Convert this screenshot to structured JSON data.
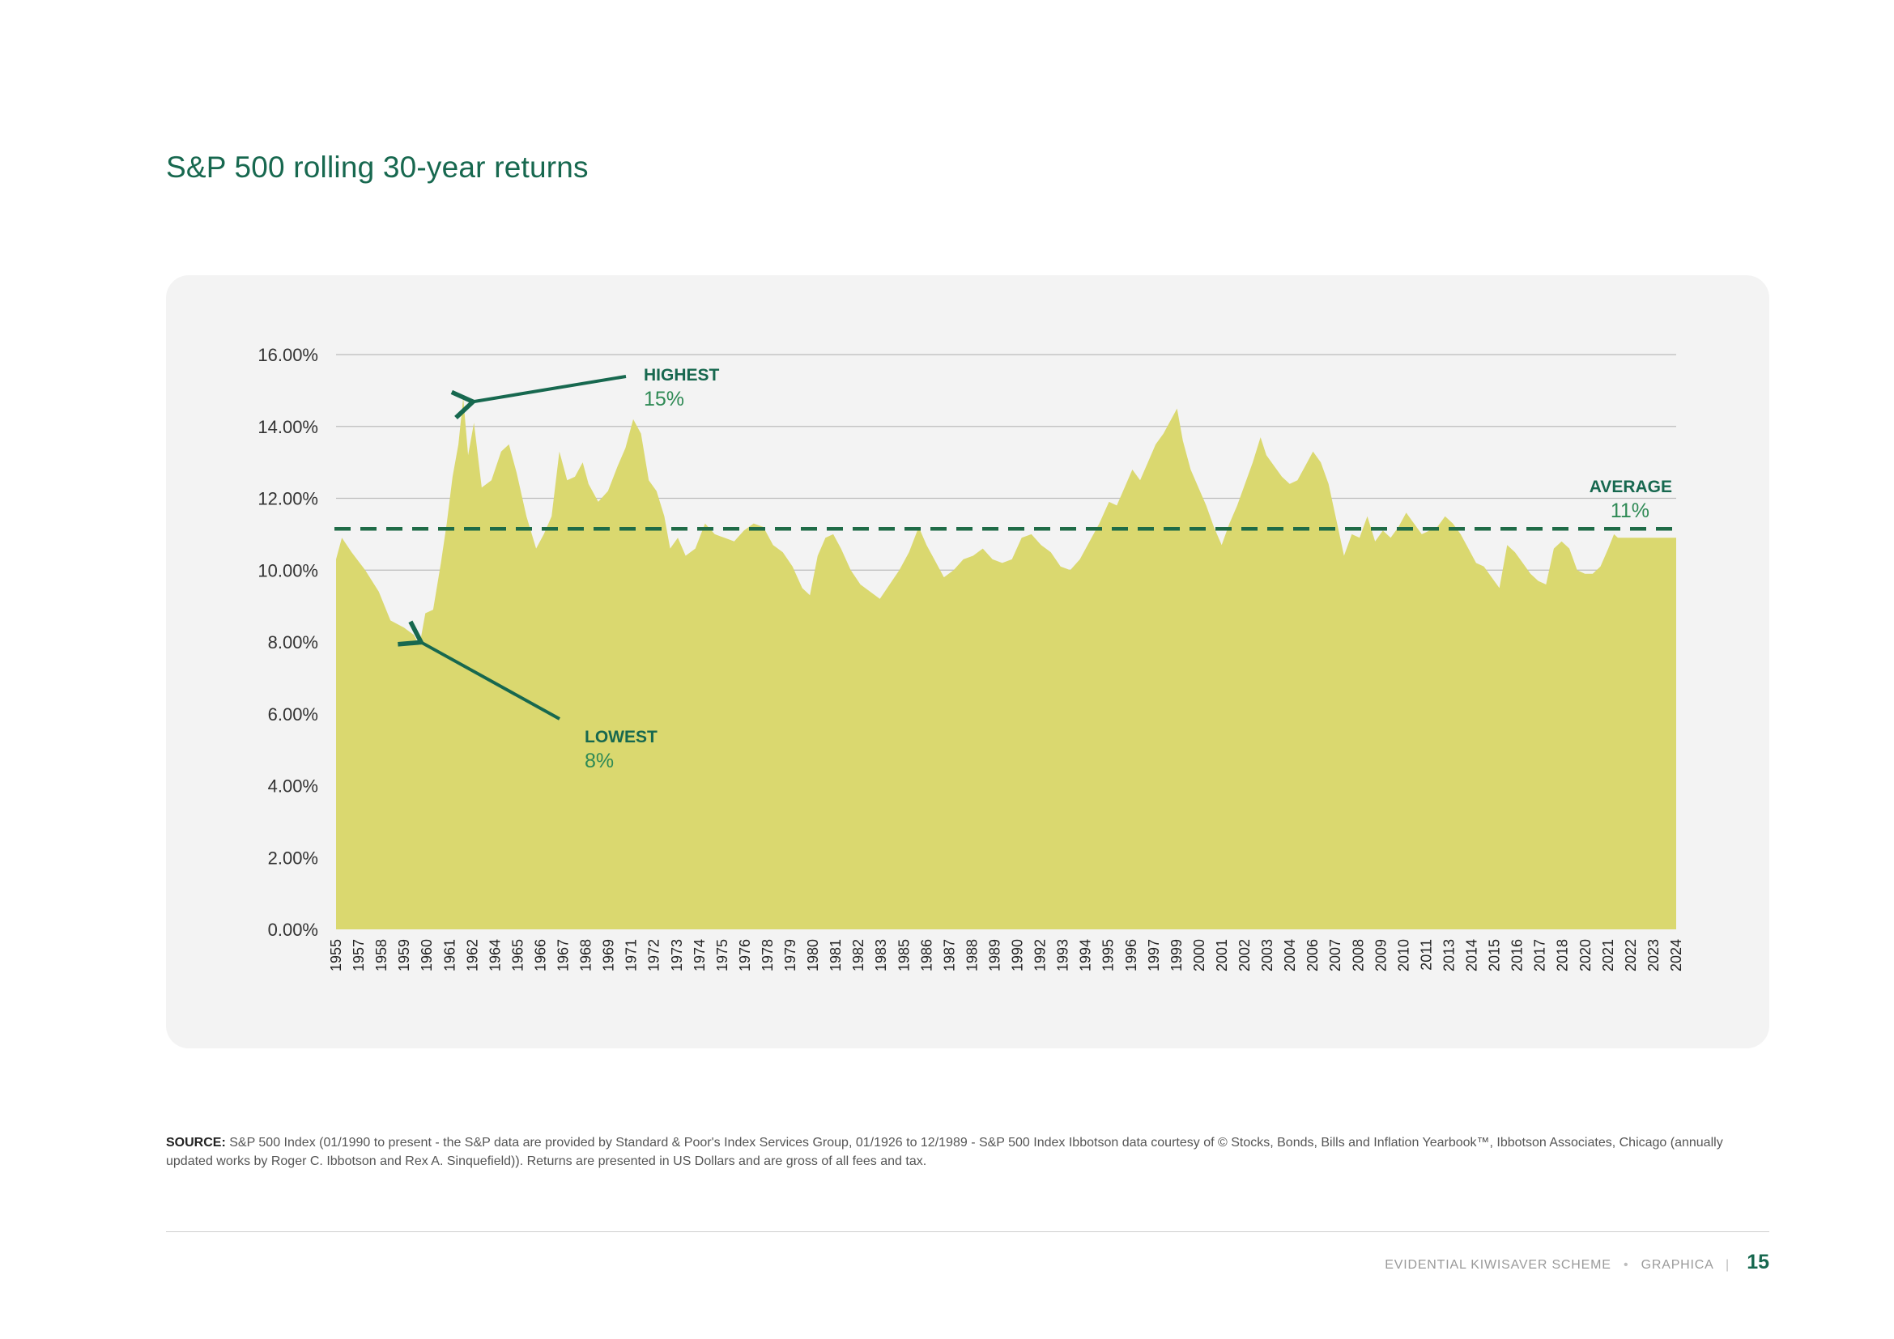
{
  "page": {
    "title": "S&P 500 rolling 30-year returns",
    "source_label": "SOURCE:",
    "source_text": "S&P 500 Index (01/1990 to present - the S&P data are provided by Standard & Poor's Index Services Group, 01/1926 to 12/1989 - S&P 500 Index Ibbotson data courtesy of © Stocks, Bonds, Bills and Inflation Yearbook™, Ibbotson Associates, Chicago (annually updated works by Roger C. Ibbotson and Rex A. Sinquefield)). Returns are presented in US Dollars and are gross of all fees and tax.",
    "footer_left": "EVIDENTIAL KIWISAVER SCHEME",
    "footer_dot": "•",
    "footer_brand": "GRAPHICA",
    "footer_sep": "|",
    "page_number": "15"
  },
  "chart_data": {
    "type": "area",
    "title": "S&P 500 rolling 30-year returns",
    "xlabel": "",
    "ylabel": "",
    "ylim": [
      0,
      16
    ],
    "y_ticks": [
      "0.00%",
      "2.00%",
      "4.00%",
      "6.00%",
      "8.00%",
      "10.00%",
      "12.00%",
      "14.00%",
      "16.00%"
    ],
    "x_ticks": [
      "1955",
      "1957",
      "1958",
      "1959",
      "1960",
      "1961",
      "1962",
      "1964",
      "1965",
      "1966",
      "1967",
      "1968",
      "1969",
      "1971",
      "1972",
      "1973",
      "1974",
      "1975",
      "1976",
      "1978",
      "1979",
      "1980",
      "1981",
      "1982",
      "1983",
      "1985",
      "1986",
      "1987",
      "1988",
      "1989",
      "1990",
      "1992",
      "1993",
      "1994",
      "1995",
      "1996",
      "1997",
      "1999",
      "2000",
      "2001",
      "2002",
      "2003",
      "2004",
      "2006",
      "2007",
      "2008",
      "2009",
      "2010",
      "2011",
      "2013",
      "2014",
      "2015",
      "2016",
      "2017",
      "2018",
      "2020",
      "2021",
      "2022",
      "2023",
      "2024"
    ],
    "grid": true,
    "colors": {
      "area": "#dad86f",
      "average": "#1f6b47",
      "arrow": "#17684f",
      "grid": "#bcbcbc"
    },
    "series": [
      {
        "values": [
          {
            "x": 1955.0,
            "y": 10.3
          },
          {
            "x": 1955.3,
            "y": 10.9
          },
          {
            "x": 1955.8,
            "y": 10.5
          },
          {
            "x": 1956.5,
            "y": 10.0
          },
          {
            "x": 1957.2,
            "y": 9.4
          },
          {
            "x": 1957.8,
            "y": 8.6
          },
          {
            "x": 1958.5,
            "y": 8.4
          },
          {
            "x": 1959.0,
            "y": 8.2
          },
          {
            "x": 1959.3,
            "y": 7.9
          },
          {
            "x": 1959.6,
            "y": 8.8
          },
          {
            "x": 1960.0,
            "y": 8.9
          },
          {
            "x": 1960.4,
            "y": 10.2
          },
          {
            "x": 1960.7,
            "y": 11.3
          },
          {
            "x": 1961.0,
            "y": 12.6
          },
          {
            "x": 1961.3,
            "y": 13.5
          },
          {
            "x": 1961.55,
            "y": 14.8
          },
          {
            "x": 1961.8,
            "y": 13.2
          },
          {
            "x": 1962.1,
            "y": 14.1
          },
          {
            "x": 1962.5,
            "y": 12.3
          },
          {
            "x": 1963.0,
            "y": 12.5
          },
          {
            "x": 1963.5,
            "y": 13.3
          },
          {
            "x": 1963.9,
            "y": 13.5
          },
          {
            "x": 1964.3,
            "y": 12.7
          },
          {
            "x": 1964.8,
            "y": 11.5
          },
          {
            "x": 1965.3,
            "y": 10.6
          },
          {
            "x": 1965.7,
            "y": 11.0
          },
          {
            "x": 1966.1,
            "y": 11.5
          },
          {
            "x": 1966.5,
            "y": 13.3
          },
          {
            "x": 1966.9,
            "y": 12.5
          },
          {
            "x": 1967.3,
            "y": 12.6
          },
          {
            "x": 1967.7,
            "y": 13.0
          },
          {
            "x": 1968.0,
            "y": 12.4
          },
          {
            "x": 1968.5,
            "y": 11.9
          },
          {
            "x": 1969.0,
            "y": 12.2
          },
          {
            "x": 1969.5,
            "y": 12.9
          },
          {
            "x": 1969.9,
            "y": 13.4
          },
          {
            "x": 1970.3,
            "y": 14.2
          },
          {
            "x": 1970.7,
            "y": 13.8
          },
          {
            "x": 1971.1,
            "y": 12.5
          },
          {
            "x": 1971.5,
            "y": 12.2
          },
          {
            "x": 1971.9,
            "y": 11.5
          },
          {
            "x": 1972.2,
            "y": 10.6
          },
          {
            "x": 1972.6,
            "y": 10.9
          },
          {
            "x": 1973.0,
            "y": 10.4
          },
          {
            "x": 1973.5,
            "y": 10.6
          },
          {
            "x": 1974.0,
            "y": 11.3
          },
          {
            "x": 1974.5,
            "y": 11.0
          },
          {
            "x": 1975.0,
            "y": 10.9
          },
          {
            "x": 1975.5,
            "y": 10.8
          },
          {
            "x": 1976.0,
            "y": 11.1
          },
          {
            "x": 1976.5,
            "y": 11.3
          },
          {
            "x": 1977.0,
            "y": 11.2
          },
          {
            "x": 1977.5,
            "y": 10.7
          },
          {
            "x": 1978.0,
            "y": 10.5
          },
          {
            "x": 1978.5,
            "y": 10.1
          },
          {
            "x": 1979.0,
            "y": 9.5
          },
          {
            "x": 1979.4,
            "y": 9.3
          },
          {
            "x": 1979.8,
            "y": 10.4
          },
          {
            "x": 1980.2,
            "y": 10.9
          },
          {
            "x": 1980.6,
            "y": 11.0
          },
          {
            "x": 1981.0,
            "y": 10.6
          },
          {
            "x": 1981.5,
            "y": 10.0
          },
          {
            "x": 1982.0,
            "y": 9.6
          },
          {
            "x": 1982.5,
            "y": 9.4
          },
          {
            "x": 1983.0,
            "y": 9.2
          },
          {
            "x": 1983.5,
            "y": 9.6
          },
          {
            "x": 1984.0,
            "y": 10.0
          },
          {
            "x": 1984.5,
            "y": 10.5
          },
          {
            "x": 1985.0,
            "y": 11.2
          },
          {
            "x": 1985.4,
            "y": 10.7
          },
          {
            "x": 1985.8,
            "y": 10.3
          },
          {
            "x": 1986.3,
            "y": 9.8
          },
          {
            "x": 1986.8,
            "y": 10.0
          },
          {
            "x": 1987.3,
            "y": 10.3
          },
          {
            "x": 1987.8,
            "y": 10.4
          },
          {
            "x": 1988.3,
            "y": 10.6
          },
          {
            "x": 1988.8,
            "y": 10.3
          },
          {
            "x": 1989.3,
            "y": 10.2
          },
          {
            "x": 1989.8,
            "y": 10.3
          },
          {
            "x": 1990.3,
            "y": 10.9
          },
          {
            "x": 1990.8,
            "y": 11.0
          },
          {
            "x": 1991.3,
            "y": 10.7
          },
          {
            "x": 1991.8,
            "y": 10.5
          },
          {
            "x": 1992.3,
            "y": 10.1
          },
          {
            "x": 1992.8,
            "y": 10.0
          },
          {
            "x": 1993.3,
            "y": 10.3
          },
          {
            "x": 1993.8,
            "y": 10.8
          },
          {
            "x": 1994.3,
            "y": 11.3
          },
          {
            "x": 1994.8,
            "y": 11.9
          },
          {
            "x": 1995.2,
            "y": 11.8
          },
          {
            "x": 1995.6,
            "y": 12.3
          },
          {
            "x": 1996.0,
            "y": 12.8
          },
          {
            "x": 1996.4,
            "y": 12.5
          },
          {
            "x": 1996.8,
            "y": 13.0
          },
          {
            "x": 1997.2,
            "y": 13.5
          },
          {
            "x": 1997.6,
            "y": 13.8
          },
          {
            "x": 1998.0,
            "y": 14.2
          },
          {
            "x": 1998.3,
            "y": 14.5
          },
          {
            "x": 1998.6,
            "y": 13.6
          },
          {
            "x": 1999.0,
            "y": 12.8
          },
          {
            "x": 1999.4,
            "y": 12.3
          },
          {
            "x": 1999.8,
            "y": 11.8
          },
          {
            "x": 2000.2,
            "y": 11.2
          },
          {
            "x": 2000.6,
            "y": 10.7
          },
          {
            "x": 2001.0,
            "y": 11.3
          },
          {
            "x": 2001.4,
            "y": 11.8
          },
          {
            "x": 2001.8,
            "y": 12.4
          },
          {
            "x": 2002.2,
            "y": 13.0
          },
          {
            "x": 2002.6,
            "y": 13.7
          },
          {
            "x": 2002.9,
            "y": 13.2
          },
          {
            "x": 2003.3,
            "y": 12.9
          },
          {
            "x": 2003.7,
            "y": 12.6
          },
          {
            "x": 2004.1,
            "y": 12.4
          },
          {
            "x": 2004.5,
            "y": 12.5
          },
          {
            "x": 2004.9,
            "y": 12.9
          },
          {
            "x": 2005.3,
            "y": 13.3
          },
          {
            "x": 2005.7,
            "y": 13.0
          },
          {
            "x": 2006.1,
            "y": 12.4
          },
          {
            "x": 2006.5,
            "y": 11.4
          },
          {
            "x": 2006.9,
            "y": 10.4
          },
          {
            "x": 2007.3,
            "y": 11.0
          },
          {
            "x": 2007.7,
            "y": 10.9
          },
          {
            "x": 2008.1,
            "y": 11.5
          },
          {
            "x": 2008.5,
            "y": 10.8
          },
          {
            "x": 2008.9,
            "y": 11.1
          },
          {
            "x": 2009.3,
            "y": 10.9
          },
          {
            "x": 2009.7,
            "y": 11.2
          },
          {
            "x": 2010.1,
            "y": 11.6
          },
          {
            "x": 2010.5,
            "y": 11.3
          },
          {
            "x": 2010.9,
            "y": 11.0
          },
          {
            "x": 2011.3,
            "y": 11.1
          },
          {
            "x": 2011.7,
            "y": 11.2
          },
          {
            "x": 2012.1,
            "y": 11.5
          },
          {
            "x": 2012.5,
            "y": 11.3
          },
          {
            "x": 2012.9,
            "y": 11.0
          },
          {
            "x": 2013.3,
            "y": 10.6
          },
          {
            "x": 2013.7,
            "y": 10.2
          },
          {
            "x": 2014.1,
            "y": 10.1
          },
          {
            "x": 2014.5,
            "y": 9.8
          },
          {
            "x": 2014.9,
            "y": 9.5
          },
          {
            "x": 2015.3,
            "y": 10.7
          },
          {
            "x": 2015.7,
            "y": 10.5
          },
          {
            "x": 2016.1,
            "y": 10.2
          },
          {
            "x": 2016.5,
            "y": 9.9
          },
          {
            "x": 2016.9,
            "y": 9.7
          },
          {
            "x": 2017.3,
            "y": 9.6
          },
          {
            "x": 2017.7,
            "y": 10.6
          },
          {
            "x": 2018.1,
            "y": 10.8
          },
          {
            "x": 2018.5,
            "y": 10.6
          },
          {
            "x": 2018.9,
            "y": 10.0
          },
          {
            "x": 2019.3,
            "y": 9.9
          },
          {
            "x": 2019.7,
            "y": 9.9
          },
          {
            "x": 2020.1,
            "y": 10.1
          },
          {
            "x": 2020.5,
            "y": 10.6
          },
          {
            "x": 2020.8,
            "y": 11.0
          },
          {
            "x": 2021.0,
            "y": 10.9
          }
        ]
      }
    ],
    "average": {
      "value": 11.15,
      "label": "AVERAGE",
      "value_label": "11%"
    },
    "annotations": [
      {
        "label": "HIGHEST",
        "value_label": "15%",
        "x": 1961.55,
        "y": 14.8
      },
      {
        "label": "LOWEST",
        "value_label": "8%",
        "x": 1959.3,
        "y": 7.9
      }
    ]
  }
}
